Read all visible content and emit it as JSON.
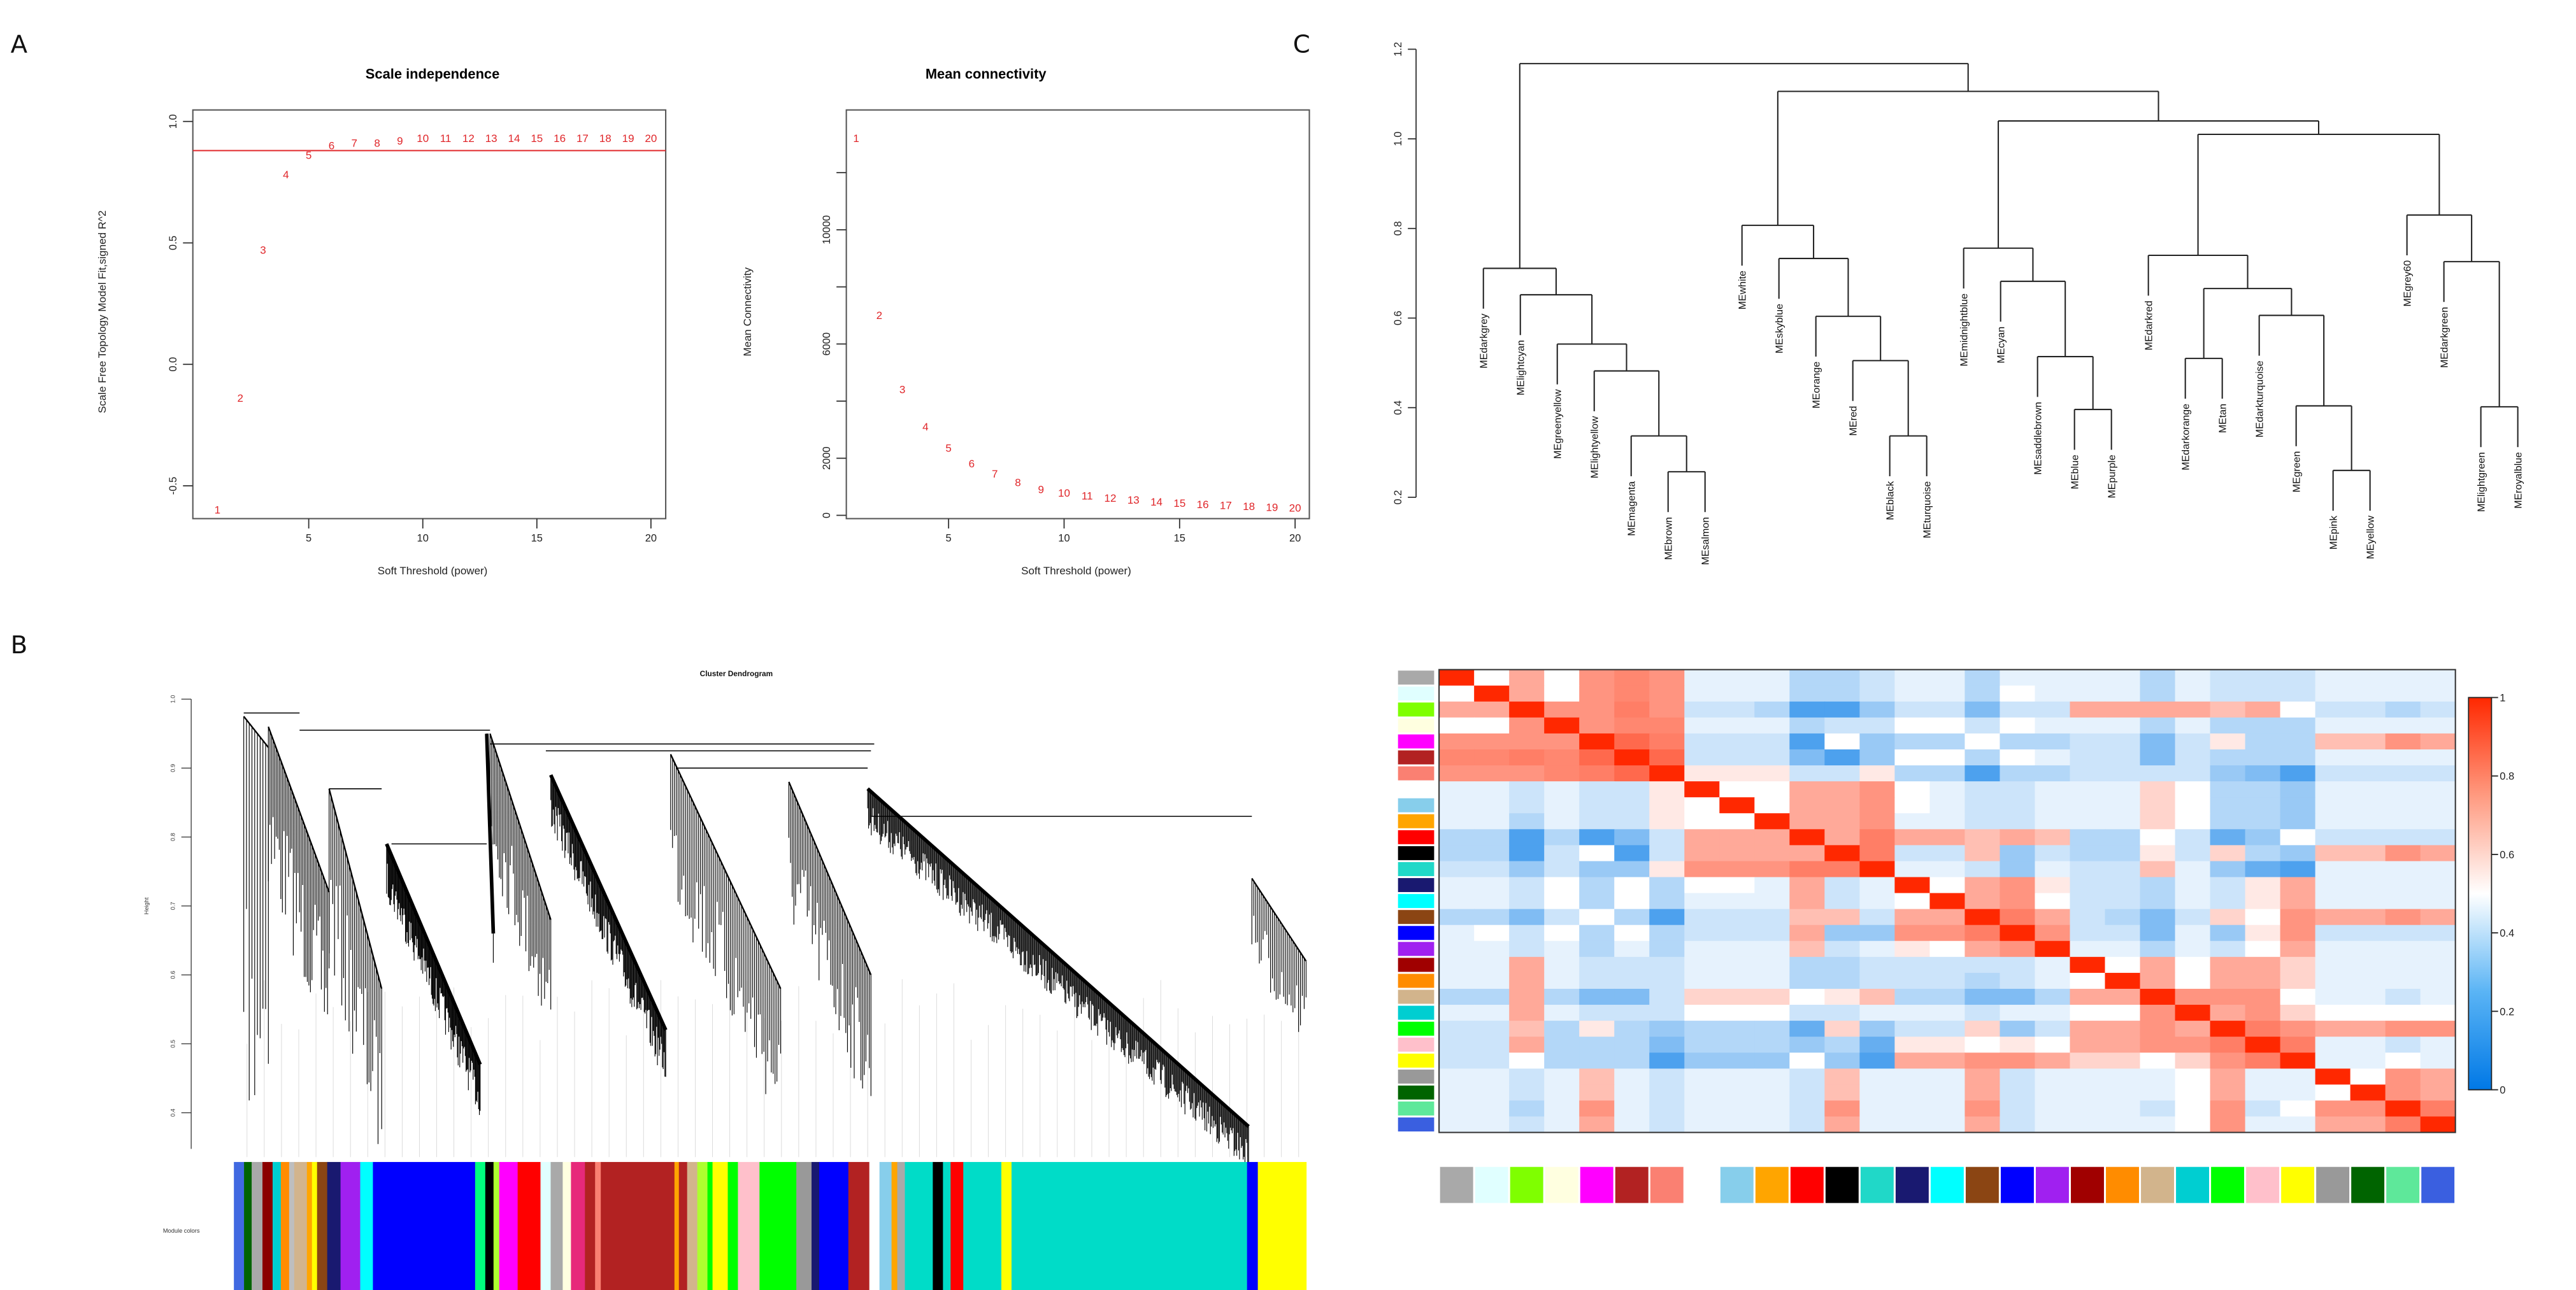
{
  "panel_letters": {
    "a": "A",
    "b": "B",
    "c": "C"
  },
  "colors": {
    "point": "#e0262a",
    "hline": "#e0262a",
    "heat_low": "#0078e6",
    "heat_mid": "#ffffff",
    "heat_high": "#ff2800"
  },
  "chart_data": [
    {
      "id": "scale_independence",
      "type": "scatter",
      "title": "Scale independence",
      "xlabel": "Soft Threshold (power)",
      "ylabel": "Scale Free Topology Model Fit,signed R^2",
      "x": [
        1,
        2,
        3,
        4,
        5,
        6,
        7,
        8,
        9,
        10,
        11,
        12,
        13,
        14,
        15,
        16,
        17,
        18,
        19,
        20
      ],
      "y": [
        -0.6,
        -0.14,
        0.47,
        0.78,
        0.86,
        0.9,
        0.91,
        0.91,
        0.92,
        0.93,
        0.93,
        0.93,
        0.93,
        0.93,
        0.93,
        0.93,
        0.93,
        0.93,
        0.93,
        0.93
      ],
      "point_labels": [
        "1",
        "2",
        "3",
        "4",
        "5",
        "6",
        "7",
        "8",
        "9",
        "10",
        "11",
        "12",
        "13",
        "14",
        "15",
        "16",
        "17",
        "18",
        "19",
        "20"
      ],
      "hline": 0.88,
      "xticks": [
        5,
        10,
        15,
        20
      ],
      "xtick_labels": [
        "5",
        "10",
        "15",
        "20"
      ],
      "yticks": [
        -0.5,
        0,
        0.5,
        1.0
      ],
      "ytick_labels": [
        "-0.5",
        "0.0",
        "0.5",
        "1.0"
      ]
    },
    {
      "id": "mean_connectivity",
      "type": "scatter",
      "title": "Mean connectivity",
      "xlabel": "Soft Threshold (power)",
      "ylabel": "Mean Connectivity",
      "x": [
        1,
        2,
        3,
        4,
        5,
        6,
        7,
        8,
        9,
        10,
        11,
        12,
        13,
        14,
        15,
        16,
        17,
        18,
        19,
        20
      ],
      "y": [
        13200,
        7000,
        4400,
        3100,
        2350,
        1800,
        1450,
        1150,
        900,
        780,
        680,
        600,
        530,
        470,
        420,
        380,
        340,
        310,
        280,
        250
      ],
      "point_labels": [
        "1",
        "2",
        "3",
        "4",
        "5",
        "6",
        "7",
        "8",
        "9",
        "10",
        "11",
        "12",
        "13",
        "14",
        "15",
        "16",
        "17",
        "18",
        "19",
        "20"
      ],
      "xticks": [
        5,
        10,
        15,
        20
      ],
      "xtick_labels": [
        "5",
        "10",
        "15",
        "20"
      ],
      "yticks": [
        0,
        2000,
        4000,
        6000,
        8000,
        10000,
        12000
      ],
      "ytick_labels": [
        "0",
        "2000",
        "",
        "6000",
        "",
        "10000",
        ""
      ]
    },
    {
      "id": "cluster_dendrogram",
      "type": "dendrogram",
      "title": "Cluster Dendrogram",
      "ylabel": "Height",
      "yticks": [
        0.4,
        0.5,
        0.6,
        0.7,
        0.8,
        0.9,
        1.0
      ],
      "ytick_labels": [
        "0.4",
        "0.5",
        "0.6",
        "0.7",
        "0.8",
        "0.9",
        "1.0"
      ],
      "color_bar_label": "Module colors",
      "module_blocks": [
        [
          "#4169e1",
          16
        ],
        [
          "#006400",
          12
        ],
        [
          "#a9a9a9",
          17
        ],
        [
          "#8b0000",
          16
        ],
        [
          "#00ced1",
          13
        ],
        [
          "#ff8c00",
          13
        ],
        [
          "#bebebe",
          8
        ],
        [
          "#d2b48c",
          20
        ],
        [
          "#ffa500",
          8
        ],
        [
          "#ffff00",
          8
        ],
        [
          "#8b4513",
          16
        ],
        [
          "#191970",
          21
        ],
        [
          "#a020f0",
          31
        ],
        [
          "#00ffff",
          20
        ],
        [
          "#0000ff",
          161
        ],
        [
          "#00ff7f",
          16
        ],
        [
          "#000000",
          13
        ],
        [
          "#adff2f",
          9
        ],
        [
          "#ff00ff",
          29
        ],
        [
          "#ff0000",
          36
        ],
        [
          "#e0ffff",
          16
        ],
        [
          "#a9a9a9",
          19
        ],
        [
          "#ffffe0",
          13
        ],
        [
          "#e7297a",
          22
        ],
        [
          "#b22222",
          16
        ],
        [
          "#fa8072",
          9
        ],
        [
          "#b22222",
          116
        ],
        [
          "#ffa500",
          7
        ],
        [
          "#b22222",
          13
        ],
        [
          "#d2b48c",
          16
        ],
        [
          "#adff2f",
          16
        ],
        [
          "#00ff00",
          8
        ],
        [
          "#ffff00",
          24
        ],
        [
          "#00ff00",
          16
        ],
        [
          "#ffc0cb",
          34
        ],
        [
          "#00ff00",
          58
        ],
        [
          "#999999",
          24
        ],
        [
          "#191970",
          12
        ],
        [
          "#0000ff",
          46
        ],
        [
          "#b22222",
          33
        ],
        [
          "#ffffff",
          16
        ],
        [
          "#87ceeb",
          19
        ],
        [
          "#ffa500",
          9
        ],
        [
          "#a9a9a9",
          12
        ],
        [
          "#00dcc8",
          44
        ],
        [
          "#000000",
          16
        ],
        [
          "#00dcc8",
          12
        ],
        [
          "#ff0000",
          20
        ],
        [
          "#00dcc8",
          60
        ],
        [
          "#ffff00",
          16
        ],
        [
          "#00dcc8",
          371
        ],
        [
          "#0000ff",
          17
        ],
        [
          "#ffff00",
          76
        ]
      ]
    },
    {
      "id": "eigengene_dendrogram",
      "type": "dendrogram",
      "yticks": [
        0.2,
        0.4,
        0.6,
        0.8,
        1.0,
        1.2
      ],
      "ytick_labels": [
        "0.2",
        "0.4",
        "0.6",
        "0.8",
        "1.0",
        "1.2"
      ],
      "leaves": [
        "MEdarkgrey",
        "MElightcyan",
        "MEgreenyellow",
        "MElightyellow",
        "MEmagenta",
        "MEbrown",
        "MEsalmon",
        "MEwhite",
        "MEskyblue",
        "MEorange",
        "MEred",
        "MEblack",
        "MEturquoise",
        "MEmidnightblue",
        "MEcyan",
        "MEsaddlebrown",
        "MEblue",
        "MEpurple",
        "MEdarkred",
        "MEdarkorange",
        "MEtan",
        "MEdarkturquoise",
        "MEgreen",
        "MEpink",
        "MEyellow",
        "MEgrey60",
        "MEdarkgreen",
        "MElightgreen",
        "MEroyalblue"
      ],
      "merges": [
        [
          "MEbrown",
          "MEsalmon",
          0.257,
          "m1"
        ],
        [
          "MEmagenta",
          "m1",
          0.337,
          "m2"
        ],
        [
          "MElightyellow",
          "m2",
          0.482,
          "m3"
        ],
        [
          "MEgreenyellow",
          "m3",
          0.542,
          "m4"
        ],
        [
          "MElightcyan",
          "m4",
          0.652,
          "m5"
        ],
        [
          "MEdarkgrey",
          "m5",
          0.711,
          "m6"
        ],
        [
          "MEblack",
          "MEturquoise",
          0.337,
          "m7"
        ],
        [
          "MEred",
          "m7",
          0.505,
          "m8"
        ],
        [
          "MEorange",
          "m8",
          0.604,
          "m9"
        ],
        [
          "MEskyblue",
          "m9",
          0.733,
          "m10"
        ],
        [
          "MEwhite",
          "m10",
          0.807,
          "m11"
        ],
        [
          "MEblue",
          "MEpurple",
          0.396,
          "m12"
        ],
        [
          "MEsaddlebrown",
          "m12",
          0.514,
          "m13"
        ],
        [
          "MEcyan",
          "m13",
          0.682,
          "m14"
        ],
        [
          "MEmidnightblue",
          "m14",
          0.756,
          "m15"
        ],
        [
          "MEpink",
          "MEyellow",
          0.26,
          "m16"
        ],
        [
          "MEgreen",
          "m16",
          0.404,
          "m17"
        ],
        [
          "MEdarkturquoise",
          "m17",
          0.606,
          "m18"
        ],
        [
          "MEdarkorange",
          "MEtan",
          0.51,
          "m19"
        ],
        [
          "m19",
          "m18",
          0.666,
          "m20"
        ],
        [
          "MEdarkred",
          "m20",
          0.74,
          "m21"
        ],
        [
          "MElightgreen",
          "MEroyalblue",
          0.402,
          "m22"
        ],
        [
          "MEdarkgreen",
          "m22",
          0.726,
          "m23"
        ],
        [
          "MEgrey60",
          "m23",
          0.83,
          "m24"
        ],
        [
          "m21",
          "m24",
          1.01,
          "m25"
        ],
        [
          "m15",
          "m25",
          1.04,
          "m26"
        ],
        [
          "m11",
          "m26",
          1.106,
          "m27"
        ],
        [
          "m6",
          "m27",
          1.168,
          "m28"
        ]
      ]
    },
    {
      "id": "eigengene_adjacency_heatmap",
      "type": "heatmap",
      "module_colors": [
        "#a9a9a9",
        "#e0ffff",
        "#7fff00",
        "#ffffe0",
        "#ff00ff",
        "#b22222",
        "#fa8072",
        "#ffffff",
        "#87ceeb",
        "#ffa500",
        "#ff0000",
        "#000000",
        "#20d8c8",
        "#191970",
        "#00ffff",
        "#8b4513",
        "#0000ff",
        "#a020f0",
        "#a00000",
        "#ff8c00",
        "#d2b48c",
        "#00ced1",
        "#00ff00",
        "#ffc0cb",
        "#ffff00",
        "#999999",
        "#006400",
        "#5ee89a",
        "#3a5fe0"
      ],
      "range": [
        0,
        1
      ],
      "legend_ticks": [
        1,
        0.8,
        0.6,
        0.4,
        0.2,
        0
      ],
      "legend_tick_labels": [
        "1",
        "0.8",
        "0.6",
        "0.4",
        "0.2",
        "0"
      ],
      "lower_triangle": [
        [
          1
        ],
        [
          0.5,
          1
        ],
        [
          0.7,
          0.7,
          1
        ],
        [
          0.5,
          0.5,
          0.75,
          1
        ],
        [
          0.75,
          0.75,
          0.75,
          0.75,
          1
        ],
        [
          0.78,
          0.78,
          0.8,
          0.78,
          0.85,
          1
        ],
        [
          0.75,
          0.75,
          0.75,
          0.78,
          0.8,
          0.85,
          1
        ],
        [
          0.45,
          0.45,
          0.4,
          0.45,
          0.4,
          0.4,
          0.55,
          1
        ],
        [
          0.45,
          0.45,
          0.4,
          0.45,
          0.4,
          0.4,
          0.55,
          0.5,
          1
        ],
        [
          0.45,
          0.45,
          0.35,
          0.45,
          0.4,
          0.4,
          0.55,
          0.5,
          0.5,
          1
        ],
        [
          0.35,
          0.35,
          0.15,
          0.35,
          0.15,
          0.25,
          0.4,
          0.7,
          0.7,
          0.7,
          1
        ],
        [
          0.35,
          0.35,
          0.15,
          0.4,
          0.5,
          0.15,
          0.4,
          0.7,
          0.7,
          0.7,
          0.7,
          1
        ],
        [
          0.4,
          0.4,
          0.3,
          0.4,
          0.3,
          0.3,
          0.55,
          0.75,
          0.75,
          0.75,
          0.8,
          0.8,
          1
        ],
        [
          0.45,
          0.45,
          0.4,
          0.5,
          0.35,
          0.5,
          0.35,
          0.5,
          0.5,
          0.45,
          0.7,
          0.4,
          0.45,
          1
        ],
        [
          0.45,
          0.45,
          0.4,
          0.5,
          0.35,
          0.5,
          0.35,
          0.45,
          0.45,
          0.45,
          0.7,
          0.4,
          0.45,
          0.5,
          1
        ],
        [
          0.35,
          0.35,
          0.25,
          0.4,
          0.5,
          0.35,
          0.15,
          0.4,
          0.4,
          0.4,
          0.65,
          0.65,
          0.4,
          0.7,
          0.7,
          1
        ],
        [
          0.45,
          0.5,
          0.4,
          0.5,
          0.35,
          0.5,
          0.35,
          0.4,
          0.4,
          0.4,
          0.7,
          0.3,
          0.3,
          0.75,
          0.75,
          0.8,
          1
        ],
        [
          0.45,
          0.45,
          0.4,
          0.45,
          0.35,
          0.45,
          0.35,
          0.45,
          0.45,
          0.45,
          0.65,
          0.4,
          0.45,
          0.55,
          0.5,
          0.7,
          0.75,
          1
        ],
        [
          0.45,
          0.45,
          0.7,
          0.45,
          0.4,
          0.4,
          0.4,
          0.45,
          0.45,
          0.45,
          0.35,
          0.35,
          0.4,
          0.4,
          0.4,
          0.4,
          0.4,
          0.45,
          1
        ],
        [
          0.45,
          0.45,
          0.7,
          0.45,
          0.4,
          0.4,
          0.4,
          0.45,
          0.45,
          0.45,
          0.35,
          0.35,
          0.4,
          0.4,
          0.4,
          0.35,
          0.4,
          0.45,
          0.5,
          1
        ],
        [
          0.35,
          0.35,
          0.7,
          0.35,
          0.25,
          0.25,
          0.4,
          0.6,
          0.6,
          0.6,
          0.5,
          0.55,
          0.65,
          0.35,
          0.35,
          0.25,
          0.25,
          0.35,
          0.7,
          0.7,
          1
        ],
        [
          0.45,
          0.45,
          0.7,
          0.45,
          0.4,
          0.4,
          0.4,
          0.5,
          0.5,
          0.5,
          0.4,
          0.4,
          0.45,
          0.45,
          0.45,
          0.4,
          0.45,
          0.45,
          0.5,
          0.5,
          0.75,
          1
        ],
        [
          0.4,
          0.4,
          0.65,
          0.35,
          0.55,
          0.35,
          0.3,
          0.35,
          0.35,
          0.35,
          0.2,
          0.6,
          0.3,
          0.4,
          0.4,
          0.6,
          0.3,
          0.4,
          0.7,
          0.7,
          0.75,
          0.7,
          1
        ],
        [
          0.4,
          0.4,
          0.7,
          0.35,
          0.35,
          0.35,
          0.25,
          0.35,
          0.35,
          0.35,
          0.3,
          0.35,
          0.2,
          0.55,
          0.55,
          0.5,
          0.55,
          0.5,
          0.7,
          0.7,
          0.75,
          0.75,
          0.8,
          1
        ],
        [
          0.4,
          0.4,
          0.5,
          0.35,
          0.35,
          0.35,
          0.15,
          0.3,
          0.3,
          0.3,
          0.5,
          0.3,
          0.15,
          0.7,
          0.7,
          0.75,
          0.75,
          0.7,
          0.6,
          0.6,
          0.5,
          0.6,
          0.75,
          0.8,
          1
        ],
        [
          0.45,
          0.45,
          0.4,
          0.45,
          0.65,
          0.45,
          0.4,
          0.45,
          0.45,
          0.45,
          0.4,
          0.65,
          0.45,
          0.45,
          0.45,
          0.7,
          0.4,
          0.45,
          0.45,
          0.45,
          0.45,
          0.5,
          0.7,
          0.45,
          0.45,
          1
        ],
        [
          0.45,
          0.45,
          0.4,
          0.45,
          0.65,
          0.45,
          0.4,
          0.45,
          0.45,
          0.45,
          0.4,
          0.65,
          0.45,
          0.45,
          0.45,
          0.7,
          0.4,
          0.45,
          0.45,
          0.45,
          0.45,
          0.5,
          0.7,
          0.45,
          0.45,
          0.5,
          1
        ],
        [
          0.45,
          0.45,
          0.35,
          0.45,
          0.75,
          0.45,
          0.4,
          0.45,
          0.45,
          0.45,
          0.4,
          0.75,
          0.45,
          0.45,
          0.45,
          0.75,
          0.4,
          0.45,
          0.45,
          0.45,
          0.4,
          0.5,
          0.75,
          0.4,
          0.5,
          0.75,
          0.75,
          1
        ],
        [
          0.45,
          0.45,
          0.4,
          0.45,
          0.7,
          0.45,
          0.4,
          0.45,
          0.45,
          0.45,
          0.4,
          0.7,
          0.45,
          0.45,
          0.45,
          0.7,
          0.4,
          0.45,
          0.45,
          0.45,
          0.45,
          0.5,
          0.75,
          0.45,
          0.45,
          0.7,
          0.7,
          0.8,
          1
        ]
      ]
    }
  ]
}
